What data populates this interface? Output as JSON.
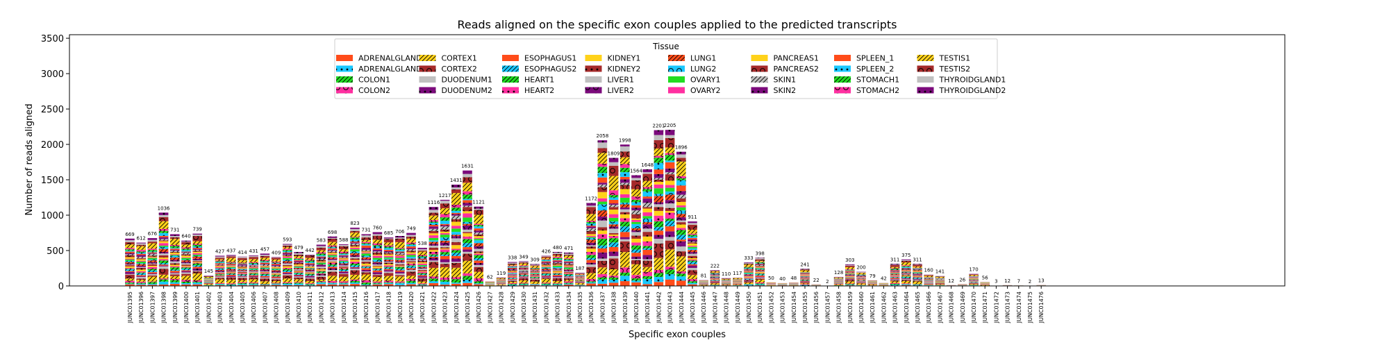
{
  "chart_data": {
    "type": "bar",
    "stacked": true,
    "title": "Reads aligned on the specific exon couples applied to the predicted transcripts",
    "xlabel": "Specific exon couples",
    "ylabel": "Number of reads aligned",
    "ylim": [
      0,
      3550
    ],
    "yticks": [
      0,
      500,
      1000,
      1500,
      2000,
      2500,
      3000,
      3500
    ],
    "grid": false,
    "legend_title": "Tissue",
    "legend_position": "top-center",
    "categories": [
      "JUNC01395",
      "JUNC01396",
      "JUNC01397",
      "JUNC01398",
      "JUNC01399",
      "JUNC01400",
      "JUNC01401",
      "JUNC01402",
      "JUNC01403",
      "JUNC01404",
      "JUNC01405",
      "JUNC01406",
      "JUNC01407",
      "JUNC01408",
      "JUNC01409",
      "JUNC01410",
      "JUNC01411",
      "JUNC01412",
      "JUNC01413",
      "JUNC01414",
      "JUNC01415",
      "JUNC01416",
      "JUNC01417",
      "JUNC01418",
      "JUNC01419",
      "JUNC01420",
      "JUNC01421",
      "JUNC01422",
      "JUNC01423",
      "JUNC01424",
      "JUNC01425",
      "JUNC01426",
      "JUNC01427",
      "JUNC01428",
      "JUNC01429",
      "JUNC01430",
      "JUNC01431",
      "JUNC01432",
      "JUNC01433",
      "JUNC01434",
      "JUNC01435",
      "JUNC01436",
      "JUNC01437",
      "JUNC01438",
      "JUNC01439",
      "JUNC01440",
      "JUNC01441",
      "JUNC01442",
      "JUNC01443",
      "JUNC01444",
      "JUNC01445",
      "JUNC01446",
      "JUNC01447",
      "JUNC01448",
      "JUNC01449",
      "JUNC01450",
      "JUNC01451",
      "JUNC01452",
      "JUNC01453",
      "JUNC01454",
      "JUNC01455",
      "JUNC01456",
      "JUNC01457",
      "JUNC01458",
      "JUNC01459",
      "JUNC01460",
      "JUNC01461",
      "JUNC01462",
      "JUNC01463",
      "JUNC01464",
      "JUNC01465",
      "JUNC01466",
      "JUNC01467",
      "JUNC01468",
      "JUNC01469",
      "JUNC01470",
      "JUNC01471",
      "JUNC01472",
      "JUNC01473",
      "JUNC01474",
      "JUNC01475",
      "JUNC01476"
    ],
    "totals": [
      669,
      612,
      676,
      1036,
      731,
      640,
      739,
      145,
      427,
      437,
      414,
      431,
      457,
      409,
      593,
      479,
      442,
      583,
      698,
      588,
      823,
      731,
      760,
      685,
      706,
      749,
      538,
      1116,
      1217,
      1431,
      1631,
      1121,
      62,
      119,
      338,
      349,
      309,
      426,
      480,
      471,
      187,
      1172,
      2058,
      1809,
      1998,
      1564,
      1648,
      2201,
      2205,
      1896,
      911,
      81,
      222,
      110,
      117,
      333,
      398,
      50,
      40,
      48,
      241,
      22,
      2,
      128,
      303,
      200,
      79,
      42,
      311,
      375,
      311,
      160,
      141,
      12,
      26,
      170,
      56,
      3,
      12,
      7,
      2,
      13
    ],
    "series": [
      {
        "name": "ADRENALGLAND1",
        "color": "#ff4c1a",
        "pattern": "none"
      },
      {
        "name": "ADRENALGLAND2",
        "color": "#1ac8ff",
        "pattern": "dot"
      },
      {
        "name": "COLON1",
        "color": "#22dd22",
        "pattern": "slash"
      },
      {
        "name": "COLON2",
        "color": "#ff2fa0",
        "pattern": "circle"
      },
      {
        "name": "CORTEX1",
        "color": "#ffd21a",
        "pattern": "slash"
      },
      {
        "name": "CORTEX2",
        "color": "#a52a2a",
        "pattern": "circle"
      },
      {
        "name": "DUODENUM1",
        "color": "#c0c0c0",
        "pattern": "none"
      },
      {
        "name": "DUODENUM2",
        "color": "#7b0a7b",
        "pattern": "dot"
      },
      {
        "name": "ESOPHAGUS1",
        "color": "#ff4c1a",
        "pattern": "none"
      },
      {
        "name": "ESOPHAGUS2",
        "color": "#1ac8ff",
        "pattern": "slash"
      },
      {
        "name": "HEART1",
        "color": "#22dd22",
        "pattern": "slash"
      },
      {
        "name": "HEART2",
        "color": "#ff2fa0",
        "pattern": "dot"
      },
      {
        "name": "KIDNEY1",
        "color": "#ffd21a",
        "pattern": "none"
      },
      {
        "name": "KIDNEY2",
        "color": "#a52a2a",
        "pattern": "dot"
      },
      {
        "name": "LIVER1",
        "color": "#c0c0c0",
        "pattern": "none"
      },
      {
        "name": "LIVER2",
        "color": "#7b0a7b",
        "pattern": "circle"
      },
      {
        "name": "LUNG1",
        "color": "#ff4c1a",
        "pattern": "slash"
      },
      {
        "name": "LUNG2",
        "color": "#1ac8ff",
        "pattern": "circle"
      },
      {
        "name": "OVARY1",
        "color": "#22dd22",
        "pattern": "none"
      },
      {
        "name": "OVARY2",
        "color": "#ff2fa0",
        "pattern": "none"
      },
      {
        "name": "PANCREAS1",
        "color": "#ffd21a",
        "pattern": "none"
      },
      {
        "name": "PANCREAS2",
        "color": "#a52a2a",
        "pattern": "circle"
      },
      {
        "name": "SKIN1",
        "color": "#c0c0c0",
        "pattern": "slash"
      },
      {
        "name": "SKIN2",
        "color": "#7b0a7b",
        "pattern": "dot"
      },
      {
        "name": "SPLEEN_1",
        "color": "#ff4c1a",
        "pattern": "none"
      },
      {
        "name": "SPLEEN_2",
        "color": "#1ac8ff",
        "pattern": "dot"
      },
      {
        "name": "STOMACH1",
        "color": "#22dd22",
        "pattern": "slash"
      },
      {
        "name": "STOMACH2",
        "color": "#ff2fa0",
        "pattern": "circle"
      },
      {
        "name": "TESTIS1",
        "color": "#ffd21a",
        "pattern": "slash"
      },
      {
        "name": "TESTIS2",
        "color": "#a52a2a",
        "pattern": "circle"
      },
      {
        "name": "THYROIDGLAND1",
        "color": "#c0c0c0",
        "pattern": "none"
      },
      {
        "name": "THYROIDGLAND2",
        "color": "#7b0a7b",
        "pattern": "dot"
      }
    ]
  }
}
